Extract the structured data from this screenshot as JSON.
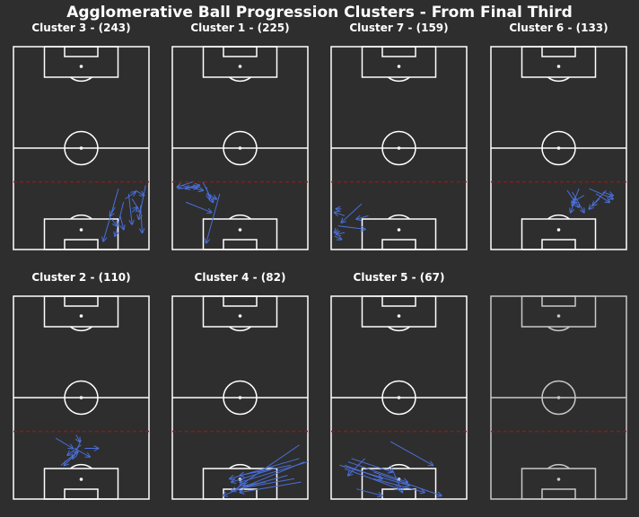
{
  "figure": {
    "title": "Agglomerative Ball Progression Clusters - From Final Third"
  },
  "colors": {
    "background": "#2e2e2e",
    "pitch_line": "#ffffff",
    "pitch_line_empty": "#c8c8c8",
    "arrow": "#4a6fd8",
    "threshold_line": "#8b1a1a"
  },
  "chart_data": {
    "type": "scatter",
    "description_kind": "arrow-map",
    "pitch": {
      "x_range": [
        0,
        80
      ],
      "y_range": [
        0,
        120
      ],
      "final_third_line_y": 40
    },
    "panels": [
      {
        "title": "Cluster 3 - (243)",
        "arrows": [
          [
            62,
            36,
            53,
            5
          ],
          [
            65,
            28,
            60,
            8
          ],
          [
            78,
            38,
            74,
            18
          ],
          [
            72,
            35,
            77,
            32
          ],
          [
            70,
            30,
            75,
            22
          ],
          [
            60,
            25,
            57,
            20
          ],
          [
            68,
            33,
            70,
            15
          ],
          [
            58,
            18,
            61,
            14
          ],
          [
            75,
            26,
            76,
            10
          ],
          [
            66,
            30,
            72,
            34
          ],
          [
            63,
            20,
            65,
            12
          ],
          [
            70,
            22,
            73,
            25
          ]
        ]
      },
      {
        "title": "Cluster 1 - (225)",
        "arrows": [
          [
            5,
            38,
            18,
            35
          ],
          [
            12,
            40,
            3,
            37
          ],
          [
            20,
            37,
            22,
            30
          ],
          [
            18,
            40,
            24,
            28
          ],
          [
            8,
            28,
            23,
            22
          ],
          [
            28,
            33,
            20,
            4
          ],
          [
            14,
            38,
            8,
            36
          ],
          [
            3,
            36,
            15,
            37
          ],
          [
            20,
            33,
            26,
            30
          ],
          [
            10,
            37,
            16,
            38
          ]
        ]
      },
      {
        "title": "Cluster 7 - (159)",
        "arrows": [
          [
            18,
            27,
            6,
            16
          ],
          [
            8,
            20,
            2,
            22
          ],
          [
            4,
            14,
            20,
            12
          ],
          [
            2,
            8,
            6,
            6
          ],
          [
            22,
            20,
            15,
            18
          ],
          [
            6,
            24,
            3,
            24
          ],
          [
            4,
            12,
            2,
            10
          ],
          [
            8,
            10,
            3,
            9
          ]
        ]
      },
      {
        "title": "Cluster 6 - (133)",
        "arrows": [
          [
            45,
            35,
            52,
            25
          ],
          [
            48,
            34,
            55,
            22
          ],
          [
            55,
            32,
            48,
            28
          ],
          [
            62,
            33,
            70,
            28
          ],
          [
            68,
            35,
            58,
            24
          ],
          [
            50,
            30,
            47,
            22
          ],
          [
            58,
            36,
            72,
            30
          ],
          [
            64,
            30,
            60,
            26
          ],
          [
            52,
            36,
            48,
            26
          ],
          [
            66,
            34,
            72,
            32
          ]
        ]
      },
      {
        "title": "Cluster 2 - (110)",
        "arrows": [
          [
            25,
            36,
            35,
            30
          ],
          [
            38,
            28,
            30,
            20
          ],
          [
            40,
            35,
            35,
            24
          ],
          [
            42,
            30,
            50,
            30
          ],
          [
            28,
            20,
            38,
            28
          ],
          [
            36,
            30,
            45,
            25
          ],
          [
            40,
            32,
            32,
            26
          ],
          [
            37,
            38,
            39,
            34
          ]
        ]
      },
      {
        "title": "Cluster 4 - (82)",
        "arrows": [
          [
            75,
            32,
            40,
            8
          ],
          [
            78,
            22,
            30,
            2
          ],
          [
            70,
            20,
            40,
            14
          ],
          [
            75,
            24,
            34,
            12
          ],
          [
            72,
            12,
            38,
            6
          ],
          [
            60,
            18,
            35,
            10
          ],
          [
            76,
            10,
            40,
            4
          ],
          [
            68,
            14,
            35,
            5
          ],
          [
            55,
            10,
            42,
            8
          ],
          [
            80,
            22,
            40,
            10
          ]
        ]
      },
      {
        "title": "Cluster 5 - (67)",
        "arrows": [
          [
            5,
            20,
            46,
            8
          ],
          [
            10,
            22,
            45,
            10
          ],
          [
            35,
            34,
            60,
            20
          ],
          [
            25,
            16,
            65,
            2
          ],
          [
            8,
            18,
            40,
            6
          ],
          [
            12,
            24,
            36,
            16
          ],
          [
            35,
            20,
            42,
            4
          ],
          [
            25,
            12,
            55,
            4
          ],
          [
            15,
            6,
            30,
            2
          ],
          [
            8,
            20,
            30,
            12
          ],
          [
            20,
            24,
            10,
            14
          ]
        ]
      },
      {
        "title": "",
        "arrows": []
      }
    ]
  }
}
